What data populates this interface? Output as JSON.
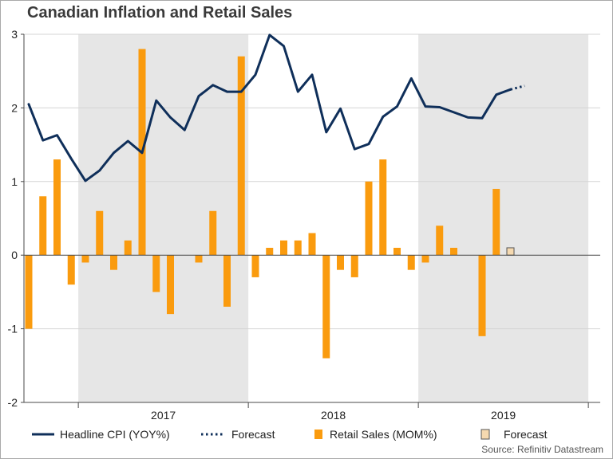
{
  "title": "Canadian Inflation and Retail Sales",
  "source": "Source: Refinitiv Datastream",
  "colors": {
    "cpi_line": "#0f2f5a",
    "retail_bar": "#fa9b0e",
    "forecast_bar": "#f5d9b0",
    "shade": "#e6e6e6",
    "grid": "#d4d4d4"
  },
  "chart_data": {
    "type": "bar+line",
    "title": "Canadian Inflation and Retail Sales",
    "ylim": [
      -2,
      3
    ],
    "yticks": [
      -2,
      -1,
      0,
      1,
      2,
      3
    ],
    "x_start": "2016-09",
    "months": [
      "2016-09",
      "2016-10",
      "2016-11",
      "2016-12",
      "2017-01",
      "2017-02",
      "2017-03",
      "2017-04",
      "2017-05",
      "2017-06",
      "2017-07",
      "2017-08",
      "2017-09",
      "2017-10",
      "2017-11",
      "2017-12",
      "2018-01",
      "2018-02",
      "2018-03",
      "2018-04",
      "2018-05",
      "2018-06",
      "2018-07",
      "2018-08",
      "2018-09",
      "2018-10",
      "2018-11",
      "2018-12",
      "2019-01",
      "2019-02",
      "2019-03",
      "2019-04",
      "2019-05",
      "2019-06",
      "2019-07",
      "2019-08",
      "2019-09",
      "2019-10"
    ],
    "year_labels": [
      "2017",
      "2018",
      "2019"
    ],
    "shaded_years": [
      "2017",
      "2019"
    ],
    "series": [
      {
        "name": "Headline CPI (YOY%)",
        "type": "line",
        "values": [
          2.05,
          1.56,
          1.63,
          1.31,
          1.01,
          1.15,
          1.39,
          1.55,
          1.39,
          2.1,
          1.87,
          1.7,
          2.16,
          2.31,
          2.22,
          2.22,
          2.45,
          2.99,
          2.84,
          2.22,
          2.45,
          1.67,
          1.99,
          1.44,
          1.51,
          1.88,
          2.02,
          2.4,
          2.02,
          2.01,
          1.94,
          1.87,
          1.86,
          2.18,
          2.25,
          null,
          null,
          null
        ]
      },
      {
        "name": "Forecast",
        "type": "line-dotted",
        "values": [
          null,
          null,
          null,
          null,
          null,
          null,
          null,
          null,
          null,
          null,
          null,
          null,
          null,
          null,
          null,
          null,
          null,
          null,
          null,
          null,
          null,
          null,
          null,
          null,
          null,
          null,
          null,
          null,
          null,
          null,
          null,
          null,
          null,
          null,
          2.25,
          2.3,
          null,
          null
        ]
      },
      {
        "name": "Retail Sales (MOM%)",
        "type": "bar",
        "values": [
          -1.0,
          0.8,
          1.3,
          -0.4,
          -0.1,
          0.6,
          -0.2,
          0.2,
          2.8,
          -0.5,
          -0.8,
          0.0,
          -0.1,
          0.6,
          -0.7,
          2.7,
          -0.3,
          0.1,
          0.2,
          0.2,
          0.3,
          -1.4,
          -0.2,
          -0.3,
          1.0,
          1.3,
          0.1,
          -0.2,
          -0.1,
          0.4,
          0.1,
          0.0,
          -1.1,
          0.9,
          null,
          null,
          null,
          null
        ]
      },
      {
        "name": "Forecast",
        "type": "bar-forecast",
        "values": [
          null,
          null,
          null,
          null,
          null,
          null,
          null,
          null,
          null,
          null,
          null,
          null,
          null,
          null,
          null,
          null,
          null,
          null,
          null,
          null,
          null,
          null,
          null,
          null,
          null,
          null,
          null,
          null,
          null,
          null,
          null,
          null,
          null,
          null,
          0.1,
          null,
          null,
          null
        ]
      }
    ]
  },
  "legend": [
    {
      "label": "Headline CPI (YOY%)",
      "kind": "line"
    },
    {
      "label": "Forecast",
      "kind": "dotted"
    },
    {
      "label": "Retail Sales (MOM%)",
      "kind": "bar"
    },
    {
      "label": "Forecast",
      "kind": "bar-forecast"
    }
  ]
}
